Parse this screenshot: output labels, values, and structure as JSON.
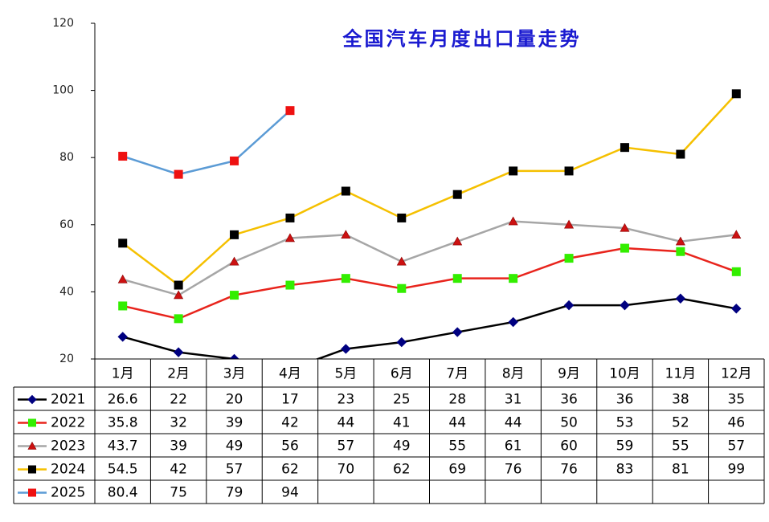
{
  "chart_data": {
    "type": "line",
    "title": "全国汽车月度出口量走势",
    "categories": [
      "1月",
      "2月",
      "3月",
      "4月",
      "5月",
      "6月",
      "7月",
      "8月",
      "9月",
      "10月",
      "11月",
      "12月"
    ],
    "ylim": [
      20,
      120
    ],
    "yticks": [
      20,
      40,
      60,
      80,
      100,
      120
    ],
    "grid": false,
    "series": [
      {
        "name": "2021",
        "color": "#000000",
        "marker": "diamond",
        "marker_color": "#000080",
        "values": [
          26.6,
          22,
          20,
          17,
          23,
          25,
          28,
          31,
          36,
          36,
          38,
          35
        ]
      },
      {
        "name": "2022",
        "color": "#e8241c",
        "marker": "square",
        "marker_color": "#33ee00",
        "values": [
          35.8,
          32,
          39,
          42,
          44,
          41,
          44,
          44,
          50,
          53,
          52,
          46
        ]
      },
      {
        "name": "2023",
        "color": "#a6a6a6",
        "marker": "triangle",
        "marker_color": "#cc1111",
        "values": [
          43.7,
          39,
          49,
          56,
          57,
          49,
          55,
          61,
          60,
          59,
          55,
          57
        ]
      },
      {
        "name": "2024",
        "color": "#f5c000",
        "marker": "square",
        "marker_color": "#000000",
        "values": [
          54.5,
          42,
          57,
          62,
          70,
          62,
          69,
          76,
          76,
          83,
          81,
          99
        ]
      },
      {
        "name": "2025",
        "color": "#5b9bd5",
        "marker": "square",
        "marker_color": "#ee1111",
        "values": [
          80.4,
          75,
          79,
          94,
          null,
          null,
          null,
          null,
          null,
          null,
          null,
          null
        ]
      }
    ]
  }
}
